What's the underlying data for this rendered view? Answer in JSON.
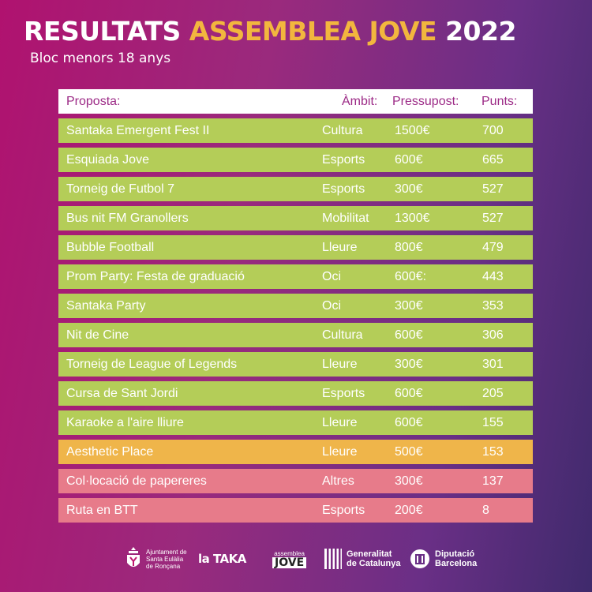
{
  "title": {
    "part1": "RESULTATS",
    "part2": "ASSEMBLEA JOVE",
    "part3": "2022"
  },
  "subtitle": "Bloc menors 18 anys",
  "colors": {
    "green": "#b4cd58",
    "orange": "#efb54a",
    "pink": "#e77b8a",
    "gold_title": "#f2b63e"
  },
  "table": {
    "headers": {
      "proposta": "Proposta:",
      "ambit": "Àmbit:",
      "pressupost": "Pressupost:",
      "punts": "Punts:"
    },
    "rows": [
      {
        "proposta": "Santaka Emergent Fest II",
        "ambit": "Cultura",
        "pressupost": "1500€",
        "punts": "700",
        "color": "green"
      },
      {
        "proposta": "Esquiada Jove",
        "ambit": "Esports",
        "pressupost": "600€",
        "punts": "665",
        "color": "green"
      },
      {
        "proposta": "Torneig de Futbol 7",
        "ambit": "Esports",
        "pressupost": "300€",
        "punts": "527",
        "color": "green"
      },
      {
        "proposta": "Bus nit FM Granollers",
        "ambit": "Mobilitat",
        "pressupost": "1300€",
        "punts": "527",
        "color": "green"
      },
      {
        "proposta": "Bubble Football",
        "ambit": "Lleure",
        "pressupost": "800€",
        "punts": "479",
        "color": "green"
      },
      {
        "proposta": "Prom Party: Festa de graduació",
        "ambit": "Oci",
        "pressupost": "600€:",
        "punts": "443",
        "color": "green"
      },
      {
        "proposta": "Santaka Party",
        "ambit": "Oci",
        "pressupost": "300€",
        "punts": "353",
        "color": "green"
      },
      {
        "proposta": "Nit de Cine",
        "ambit": "Cultura",
        "pressupost": "600€",
        "punts": "306",
        "color": "green"
      },
      {
        "proposta": "Torneig de League of Legends",
        "ambit": "Lleure",
        "pressupost": "300€",
        "punts": "301",
        "color": "green"
      },
      {
        "proposta": "Cursa de Sant Jordi",
        "ambit": "Esports",
        "pressupost": "600€",
        "punts": "205",
        "color": "green"
      },
      {
        "proposta": "Karaoke a l'aire lliure",
        "ambit": "Lleure",
        "pressupost": "600€",
        "punts": "155",
        "color": "green"
      },
      {
        "proposta": "Aesthetic Place",
        "ambit": "Lleure",
        "pressupost": "500€",
        "punts": "153",
        "color": "orange"
      },
      {
        "proposta": "Col·locació de papereres",
        "ambit": "Altres",
        "pressupost": "300€",
        "punts": "137",
        "color": "pink"
      },
      {
        "proposta": "Ruta en BTT",
        "ambit": "Esports",
        "pressupost": "200€",
        "punts": "8",
        "color": "pink"
      }
    ]
  },
  "footer": {
    "ajuntament": {
      "line1": "Ajuntament de",
      "line2": "Santa Eulàlia",
      "line3": "de Ronçana",
      "icon": "coat-of-arms-icon"
    },
    "lataka": "la TAKA",
    "assemblea": {
      "small": "assemblea",
      "big": "JOVE"
    },
    "generalitat": {
      "line1": "Generalitat",
      "line2": "de Catalunya",
      "icon": "senyera-icon"
    },
    "diputacio": {
      "line1": "Diputació",
      "line2": "Barcelona",
      "icon": "diputacio-seal-icon"
    }
  }
}
